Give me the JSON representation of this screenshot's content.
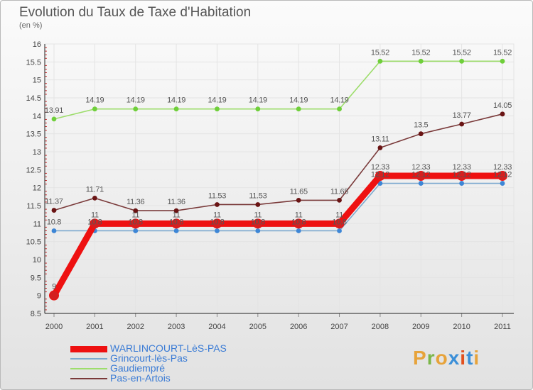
{
  "title": "Evolution du Taux de Taxe d'Habitation",
  "unit": "(en %)",
  "logo": {
    "text": "Proxiti",
    "colors": [
      "#e7a33a",
      "#7ab648",
      "#e7a33a",
      "#3b8fd8",
      "#e2501f",
      "#3b8fd8",
      "#e7a33a"
    ]
  },
  "chart_data": {
    "type": "line",
    "title": "Evolution du Taux de Taxe d'Habitation",
    "ylabel": "(en %)",
    "xlabel": "",
    "categories": [
      "2000",
      "2001",
      "2002",
      "2003",
      "2004",
      "2005",
      "2006",
      "2007",
      "2008",
      "2009",
      "2010",
      "2011"
    ],
    "yticks": [
      "8.5",
      "9",
      "9.5",
      "10",
      "10.5",
      "11",
      "11.5",
      "12",
      "12.5",
      "13",
      "13.5",
      "14",
      "14.5",
      "15",
      "15.5",
      "16"
    ],
    "ylim": [
      8.5,
      16
    ],
    "series": [
      {
        "name": "WARLINCOURT-LèS-PAS",
        "color": "#ee1111",
        "marker": "#d42020",
        "thick": true,
        "values": [
          9,
          11,
          11,
          11,
          11,
          11,
          11,
          11,
          12.33,
          12.33,
          12.33,
          12.33
        ],
        "labels": [
          "9",
          "11",
          "11",
          "11",
          "11",
          "11",
          "11",
          "11",
          "12.33",
          "12.33",
          "12.33",
          "12.33"
        ]
      },
      {
        "name": "Grincourt-lès-Pas",
        "color": "#7ca9cf",
        "marker": "#3d86d6",
        "thick": false,
        "values": [
          10.8,
          10.8,
          10.8,
          10.8,
          10.8,
          10.8,
          10.8,
          10.8,
          12.12,
          12.12,
          12.12,
          12.12
        ],
        "labels": [
          "10.8",
          "10.8",
          "10.8",
          "10.8",
          "10.8",
          "10.8",
          "10.8",
          "10.8",
          "12.12",
          "12.12",
          "12.12",
          "12.12"
        ]
      },
      {
        "name": "Gaudiempré",
        "color": "#9ddd6b",
        "marker": "#6fcf3a",
        "thick": false,
        "values": [
          13.91,
          14.19,
          14.19,
          14.19,
          14.19,
          14.19,
          14.19,
          14.19,
          15.52,
          15.52,
          15.52,
          15.52
        ],
        "labels": [
          "13.91",
          "14.19",
          "14.19",
          "14.19",
          "14.19",
          "14.19",
          "14.19",
          "14.19",
          "15.52",
          "15.52",
          "15.52",
          "15.52"
        ]
      },
      {
        "name": "Pas-en-Artois",
        "color": "#7a3a3a",
        "marker": "#6a1414",
        "thick": false,
        "values": [
          11.37,
          11.71,
          11.36,
          11.36,
          11.53,
          11.53,
          11.65,
          11.65,
          13.11,
          13.5,
          13.77,
          14.05
        ],
        "labels": [
          "11.37",
          "11.71",
          "11.36",
          "11.36",
          "11.53",
          "11.53",
          "11.65",
          "11.65",
          "13.11",
          "13.5",
          "13.77",
          "14.05"
        ]
      }
    ]
  }
}
